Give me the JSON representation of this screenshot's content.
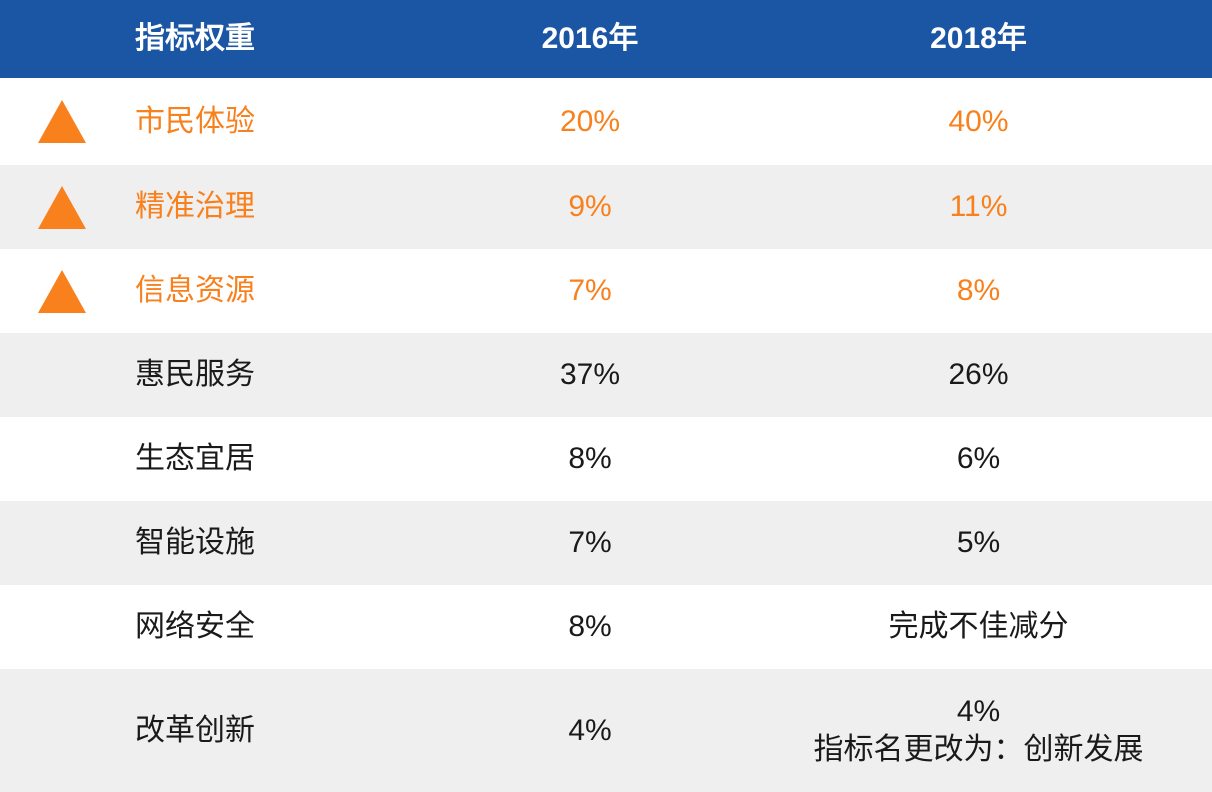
{
  "table": {
    "header": {
      "indicator": "指标权重",
      "y2016": "2016年",
      "y2018": "2018年"
    },
    "rows": [
      {
        "label": "市民体验",
        "y2016": "20%",
        "y2018": "40%"
      },
      {
        "label": "精准治理",
        "y2016": "9%",
        "y2018": "11%"
      },
      {
        "label": "信息资源",
        "y2016": "7%",
        "y2018": "8%"
      },
      {
        "label": "惠民服务",
        "y2016": "37%",
        "y2018": "26%"
      },
      {
        "label": "生态宜居",
        "y2016": "8%",
        "y2018": "6%"
      },
      {
        "label": "智能设施",
        "y2016": "7%",
        "y2018": "5%"
      },
      {
        "label": "网络安全",
        "y2016": "8%",
        "y2018": "完成不佳减分"
      },
      {
        "label": "改革创新",
        "y2016": "4%",
        "y2018": "4%",
        "y2018_note": "指标名更改为：创新发展"
      }
    ],
    "colors": {
      "header_bg": "#1b56a4",
      "highlight": "#f8801d",
      "row_alt_bg": "#efefef",
      "text": "#1a1a1a"
    }
  },
  "chart_data": {
    "type": "table",
    "title": "指标权重",
    "columns": [
      "指标权重",
      "2016年",
      "2018年"
    ],
    "rows": [
      [
        "市民体验",
        "20%",
        "40%"
      ],
      [
        "精准治理",
        "9%",
        "11%"
      ],
      [
        "信息资源",
        "7%",
        "8%"
      ],
      [
        "惠民服务",
        "37%",
        "26%"
      ],
      [
        "生态宜居",
        "8%",
        "6%"
      ],
      [
        "智能设施",
        "7%",
        "5%"
      ],
      [
        "网络安全",
        "8%",
        "完成不佳减分"
      ],
      [
        "改革创新",
        "4%",
        "4%（指标名更改为：创新发展）"
      ]
    ],
    "highlighted_rows": [
      "市民体验",
      "精准治理",
      "信息资源"
    ],
    "highlight_marker": "orange-up-triangle",
    "layout": "alternating row shading, header row dark blue with white bold text"
  }
}
